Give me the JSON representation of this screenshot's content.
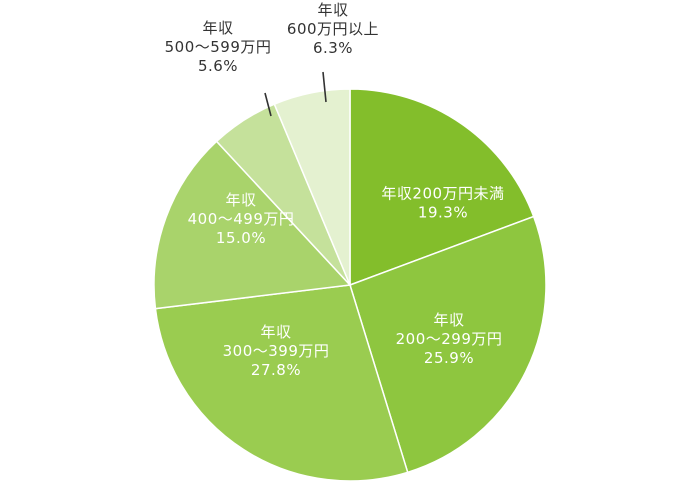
{
  "chart_data": {
    "type": "pie",
    "title": "",
    "start_angle_deg": 0,
    "direction": "clockwise",
    "slices": [
      {
        "label_line1": "年収200万円未満",
        "label_line2": "",
        "pct_text": "19.3%",
        "value": 19.3,
        "color": "#83be2b",
        "text_color": "#ffffff"
      },
      {
        "label_line1": "年収",
        "label_line2": "200〜299万円",
        "pct_text": "25.9%",
        "value": 25.9,
        "color": "#8ec63f",
        "text_color": "#ffffff"
      },
      {
        "label_line1": "年収",
        "label_line2": "300〜399万円",
        "pct_text": "27.8%",
        "value": 27.8,
        "color": "#9acc50",
        "text_color": "#ffffff"
      },
      {
        "label_line1": "年収",
        "label_line2": "400〜499万円",
        "pct_text": "15.0%",
        "value": 15.0,
        "color": "#a9d36b",
        "text_color": "#ffffff"
      },
      {
        "label_line1": "年収",
        "label_line2": "500〜599万円",
        "pct_text": "5.6%",
        "value": 5.6,
        "color": "#c5e19b",
        "text_color": "#333333"
      },
      {
        "label_line1": "年収",
        "label_line2": "600万円以上",
        "pct_text": "6.3%",
        "value": 6.3,
        "color": "#e4f1d0",
        "text_color": "#333333"
      }
    ]
  }
}
